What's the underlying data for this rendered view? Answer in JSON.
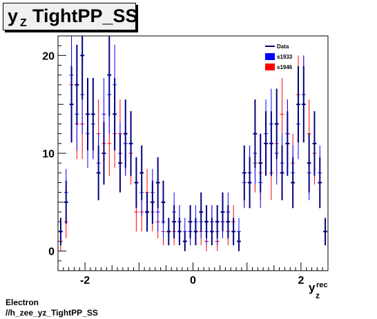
{
  "chart_data": {
    "type": "scatter",
    "title": "y_Z TightPP_SS",
    "title_main": "y",
    "title_sub": "Z",
    "title_rest": " TightPP_SS",
    "xlabel_main": "y",
    "xlabel_sub": "z",
    "xlabel_sup": "rec",
    "xlim": [
      -2.5,
      2.5
    ],
    "ylim": [
      -2,
      22
    ],
    "x_ticks": [
      -2,
      0,
      2
    ],
    "x_tick_labels": [
      "-2",
      "0",
      "2"
    ],
    "y_ticks": [
      0,
      10,
      20
    ],
    "y_tick_labels": [
      "0",
      "10",
      "20"
    ],
    "legend": [
      {
        "name": "Data",
        "color": "#000080",
        "style": "line"
      },
      {
        "name": "s1933",
        "color": "#0000ff",
        "style": "box"
      },
      {
        "name": "s1946",
        "color": "#ff0000",
        "style": "box"
      }
    ],
    "legend_position": "top-right",
    "series": [
      {
        "name": "Data",
        "color": "#000080",
        "bin_width": 0.1,
        "x": [
          -2.45,
          -2.35,
          -2.25,
          -2.15,
          -2.05,
          -1.95,
          -1.85,
          -1.75,
          -1.65,
          -1.55,
          -1.45,
          -1.35,
          -1.25,
          -1.15,
          -1.05,
          -0.95,
          -0.85,
          -0.75,
          -0.65,
          -0.55,
          -0.45,
          -0.35,
          -0.25,
          -0.15,
          -0.05,
          0.05,
          0.15,
          0.25,
          0.35,
          0.45,
          0.55,
          0.65,
          0.75,
          0.85,
          0.95,
          1.05,
          1.15,
          1.25,
          1.35,
          1.45,
          1.55,
          1.65,
          1.75,
          1.85,
          1.95,
          2.05,
          2.15,
          2.25,
          2.35,
          2.45
        ],
        "y": [
          2,
          5,
          15,
          17,
          20,
          14,
          14,
          8,
          10,
          18,
          14,
          9,
          12,
          11,
          7,
          8,
          4,
          5,
          7,
          5,
          2,
          3,
          2,
          1,
          3,
          2,
          4,
          3,
          2,
          3,
          4,
          3,
          2,
          1,
          8,
          7,
          12,
          9,
          11,
          11,
          13,
          8,
          11,
          7,
          15,
          15,
          9,
          11,
          7,
          2
        ],
        "yerr": [
          1.4,
          2.2,
          3.9,
          4.1,
          4.5,
          3.7,
          3.7,
          2.8,
          3.2,
          4.2,
          3.7,
          3.0,
          3.5,
          3.3,
          2.6,
          2.8,
          2.0,
          2.2,
          2.6,
          2.2,
          1.4,
          1.7,
          1.4,
          1.0,
          1.7,
          1.4,
          2.0,
          1.7,
          1.4,
          1.7,
          2.0,
          1.7,
          1.4,
          1.0,
          2.8,
          2.6,
          3.5,
          3.0,
          3.3,
          3.3,
          3.6,
          2.8,
          3.3,
          2.6,
          3.9,
          3.9,
          3.0,
          3.3,
          2.6,
          1.4
        ]
      },
      {
        "name": "s1933",
        "color": "#0000ff",
        "bin_width": 0.1,
        "x": [
          -2.45,
          -2.35,
          -2.25,
          -2.15,
          -2.05,
          -1.95,
          -1.85,
          -1.75,
          -1.65,
          -1.55,
          -1.45,
          -1.35,
          -1.25,
          -1.15,
          -1.05,
          -0.95,
          -0.85,
          -0.75,
          -0.65,
          -0.55,
          -0.45,
          -0.35,
          -0.25,
          -0.15,
          -0.05,
          0.05,
          0.15,
          0.25,
          0.35,
          0.45,
          0.55,
          0.65,
          0.75,
          0.85,
          0.95,
          1.05,
          1.15,
          1.25,
          1.35,
          1.45,
          1.55,
          1.65,
          1.75,
          1.85,
          1.95,
          2.05,
          2.15,
          2.25,
          2.35,
          2.45
        ],
        "y": [
          2,
          6,
          18,
          14,
          16,
          12,
          13,
          9,
          14,
          16,
          17,
          10,
          11,
          11,
          7,
          6,
          4,
          6,
          4,
          3,
          2,
          4,
          3,
          2,
          2,
          3,
          3,
          2,
          3,
          2,
          3,
          4,
          2,
          2,
          7,
          8,
          10,
          7,
          12,
          13,
          10,
          9,
          12,
          8,
          13,
          16,
          8,
          11,
          8,
          2
        ],
        "yerr": [
          1.4,
          2.4,
          4.2,
          3.7,
          4.0,
          3.5,
          3.6,
          3.0,
          3.7,
          4.0,
          4.1,
          3.2,
          3.3,
          3.3,
          2.6,
          2.4,
          2.0,
          2.4,
          2.0,
          1.7,
          1.4,
          2.0,
          1.7,
          1.4,
          1.4,
          1.7,
          1.7,
          1.4,
          1.7,
          1.4,
          1.7,
          2.0,
          1.4,
          1.4,
          2.6,
          2.8,
          3.2,
          2.6,
          3.5,
          3.6,
          3.2,
          3.0,
          3.5,
          2.8,
          3.6,
          4.0,
          2.8,
          3.3,
          2.8,
          1.4
        ]
      },
      {
        "name": "s1946",
        "color": "#ff0000",
        "bin_width": 0.1,
        "x": [
          -2.45,
          -2.35,
          -2.25,
          -2.15,
          -2.05,
          -1.95,
          -1.85,
          -1.75,
          -1.65,
          -1.55,
          -1.45,
          -1.35,
          -1.25,
          -1.15,
          -1.05,
          -0.95,
          -0.85,
          -0.75,
          -0.65,
          -0.55,
          -0.45,
          -0.35,
          -0.25,
          -0.15,
          -0.05,
          0.05,
          0.15,
          0.25,
          0.35,
          0.45,
          0.55,
          0.65,
          0.75,
          0.85,
          0.95,
          1.05,
          1.15,
          1.25,
          1.35,
          1.45,
          1.55,
          1.65,
          1.75,
          1.85,
          1.95,
          2.05,
          2.15,
          2.25,
          2.35,
          2.45
        ],
        "y": [
          1,
          3,
          17,
          13,
          13,
          14,
          13,
          12,
          11,
          11,
          12,
          12,
          11,
          10,
          4,
          4,
          6,
          4,
          3,
          2,
          2,
          2,
          3,
          1,
          2,
          2,
          2,
          1,
          3,
          1,
          3,
          2,
          3,
          1,
          7,
          8,
          9,
          8,
          11,
          8,
          11,
          14,
          12,
          9,
          16,
          16,
          12,
          10,
          7,
          2
        ],
        "yerr": [
          1.0,
          1.7,
          4.1,
          3.6,
          3.6,
          3.7,
          3.6,
          3.5,
          3.3,
          3.3,
          3.5,
          3.5,
          3.3,
          3.2,
          2.0,
          2.0,
          2.4,
          2.0,
          1.7,
          1.4,
          1.4,
          1.4,
          1.7,
          1.0,
          1.4,
          1.4,
          1.4,
          1.0,
          1.7,
          1.0,
          1.7,
          1.4,
          1.7,
          1.0,
          2.6,
          2.8,
          3.0,
          2.8,
          3.3,
          2.8,
          3.3,
          3.7,
          3.5,
          3.0,
          4.0,
          4.0,
          3.5,
          3.2,
          2.6,
          1.4
        ]
      }
    ]
  },
  "footer": {
    "line1": "Electron",
    "line2": "//h_zee_yz_TightPP_SS"
  }
}
